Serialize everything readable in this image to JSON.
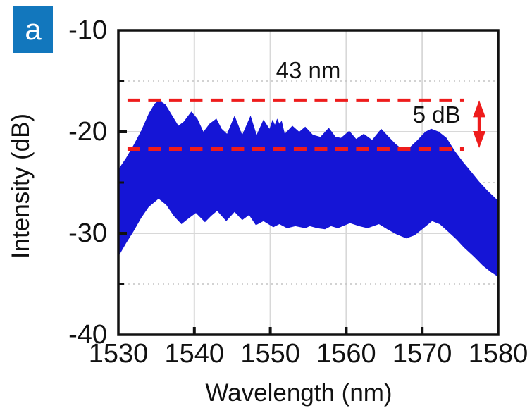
{
  "panel": {
    "label": "a"
  },
  "axes": {
    "x": {
      "title": "Wavelength (nm)",
      "major_ticks": [
        1530,
        1540,
        1550,
        1560,
        1570,
        1580
      ],
      "gridline_ticks": [
        1540,
        1550,
        1560,
        1570
      ]
    },
    "y": {
      "title": "Intensity (dB)",
      "major_ticks": [
        -10,
        -20,
        -30,
        -40
      ],
      "minor_ticks": [
        -15,
        -25,
        -35
      ],
      "gridline_ticks": [
        -20,
        -30
      ]
    }
  },
  "colors": {
    "spectrum_blue": "#1515d6",
    "marker_red": "#ee1c1c",
    "panel_badge_blue": "#1277bd",
    "grid_major": "#d8d8d8",
    "grid_minor": "#c4c4c4",
    "axis_black": "#111111"
  },
  "chart_data": {
    "type": "area",
    "title": "",
    "xlabel": "Wavelength (nm)",
    "ylabel": "Intensity (dB)",
    "xlim": [
      1530,
      1580
    ],
    "ylim": [
      -40,
      -10
    ],
    "grid": "major solid gray vertical+horizontal, minor dotted horizontal",
    "description": "Broadband mode-locked laser output spectrum drawn as a dense blue band between upper and lower envelopes; 5 dB bandwidth of 43 nm marked by red dashed lines at -16.9 dB and -21.7 dB",
    "series": [
      {
        "name": "spectrum-upper-envelope",
        "points": [
          [
            1530.0,
            -23.7
          ],
          [
            1531.0,
            -22.6
          ],
          [
            1532.0,
            -21.3
          ],
          [
            1533.0,
            -19.9
          ],
          [
            1534.0,
            -18.2
          ],
          [
            1534.8,
            -17.2
          ],
          [
            1535.4,
            -16.9
          ],
          [
            1536.2,
            -17.3
          ],
          [
            1537.0,
            -18.3
          ],
          [
            1537.9,
            -19.4
          ],
          [
            1538.6,
            -19.0
          ],
          [
            1539.6,
            -18.0
          ],
          [
            1540.4,
            -18.7
          ],
          [
            1541.2,
            -20.0
          ],
          [
            1542.0,
            -19.2
          ],
          [
            1542.9,
            -18.7
          ],
          [
            1543.6,
            -19.7
          ],
          [
            1544.3,
            -20.2
          ],
          [
            1545.3,
            -18.4
          ],
          [
            1546.3,
            -20.3
          ],
          [
            1547.4,
            -18.4
          ],
          [
            1548.2,
            -20.3
          ],
          [
            1549.1,
            -18.8
          ],
          [
            1549.9,
            -19.7
          ],
          [
            1550.3,
            -18.8
          ],
          [
            1550.6,
            -19.3
          ],
          [
            1550.9,
            -18.7
          ],
          [
            1551.2,
            -19.2
          ],
          [
            1551.5,
            -18.9
          ],
          [
            1551.9,
            -20.2
          ],
          [
            1552.9,
            -19.4
          ],
          [
            1553.8,
            -20.0
          ],
          [
            1554.6,
            -19.5
          ],
          [
            1555.6,
            -20.3
          ],
          [
            1556.6,
            -20.5
          ],
          [
            1557.7,
            -19.6
          ],
          [
            1558.6,
            -20.5
          ],
          [
            1559.3,
            -20.6
          ],
          [
            1560.4,
            -19.9
          ],
          [
            1561.3,
            -20.7
          ],
          [
            1562.3,
            -20.2
          ],
          [
            1563.4,
            -20.8
          ],
          [
            1564.6,
            -19.7
          ],
          [
            1565.6,
            -20.5
          ],
          [
            1566.5,
            -21.2
          ],
          [
            1567.5,
            -21.8
          ],
          [
            1568.4,
            -21.5
          ],
          [
            1569.4,
            -20.8
          ],
          [
            1570.4,
            -20.0
          ],
          [
            1571.2,
            -19.7
          ],
          [
            1572.2,
            -20.0
          ],
          [
            1573.2,
            -20.6
          ],
          [
            1574.3,
            -21.9
          ],
          [
            1575.3,
            -22.9
          ],
          [
            1576.3,
            -23.8
          ],
          [
            1577.5,
            -24.9
          ],
          [
            1578.6,
            -25.8
          ],
          [
            1580.0,
            -26.8
          ]
        ]
      },
      {
        "name": "spectrum-lower-envelope",
        "points": [
          [
            1530.0,
            -32.3
          ],
          [
            1531.0,
            -31.0
          ],
          [
            1532.0,
            -29.8
          ],
          [
            1533.0,
            -28.5
          ],
          [
            1534.0,
            -27.4
          ],
          [
            1535.3,
            -26.6
          ],
          [
            1536.3,
            -27.2
          ],
          [
            1537.3,
            -28.3
          ],
          [
            1538.3,
            -29.1
          ],
          [
            1539.3,
            -28.5
          ],
          [
            1540.2,
            -28.0
          ],
          [
            1541.4,
            -28.9
          ],
          [
            1542.2,
            -28.3
          ],
          [
            1543.0,
            -27.8
          ],
          [
            1544.2,
            -28.8
          ],
          [
            1545.3,
            -27.9
          ],
          [
            1546.3,
            -28.7
          ],
          [
            1547.2,
            -28.2
          ],
          [
            1548.1,
            -29.2
          ],
          [
            1549.1,
            -28.8
          ],
          [
            1550.4,
            -29.4
          ],
          [
            1551.2,
            -29.1
          ],
          [
            1552.2,
            -29.5
          ],
          [
            1553.3,
            -29.3
          ],
          [
            1554.6,
            -29.5
          ],
          [
            1555.2,
            -29.3
          ],
          [
            1556.2,
            -29.5
          ],
          [
            1557.2,
            -29.6
          ],
          [
            1558.0,
            -29.3
          ],
          [
            1558.9,
            -29.5
          ],
          [
            1560.5,
            -29.0
          ],
          [
            1561.7,
            -29.3
          ],
          [
            1562.8,
            -29.5
          ],
          [
            1564.3,
            -29.1
          ],
          [
            1565.4,
            -29.6
          ],
          [
            1566.6,
            -30.1
          ],
          [
            1567.9,
            -30.5
          ],
          [
            1569.0,
            -30.2
          ],
          [
            1570.0,
            -29.6
          ],
          [
            1571.3,
            -28.8
          ],
          [
            1572.3,
            -29.1
          ],
          [
            1573.5,
            -29.9
          ],
          [
            1574.5,
            -30.6
          ],
          [
            1575.5,
            -31.4
          ],
          [
            1576.8,
            -32.3
          ],
          [
            1578.0,
            -33.2
          ],
          [
            1579.0,
            -33.8
          ],
          [
            1580.0,
            -34.3
          ]
        ]
      }
    ],
    "annotations": {
      "bandwidth_label": {
        "text": "43 nm",
        "x_nm": 1555.0,
        "y_db": -13.95
      },
      "span_label": {
        "text": "5 dB",
        "x_nm": 1571.9,
        "y_db": -18.35
      },
      "dashed_line_upper": {
        "y_db": -16.9,
        "x_start_nm": 1531.2,
        "x_end_nm": 1575.5
      },
      "dashed_line_lower": {
        "y_db": -21.7,
        "x_start_nm": 1531.2,
        "x_end_nm": 1575.5
      },
      "span_arrow": {
        "x_nm": 1577.5,
        "y_top_db": -16.9,
        "y_bottom_db": -21.6
      }
    }
  }
}
